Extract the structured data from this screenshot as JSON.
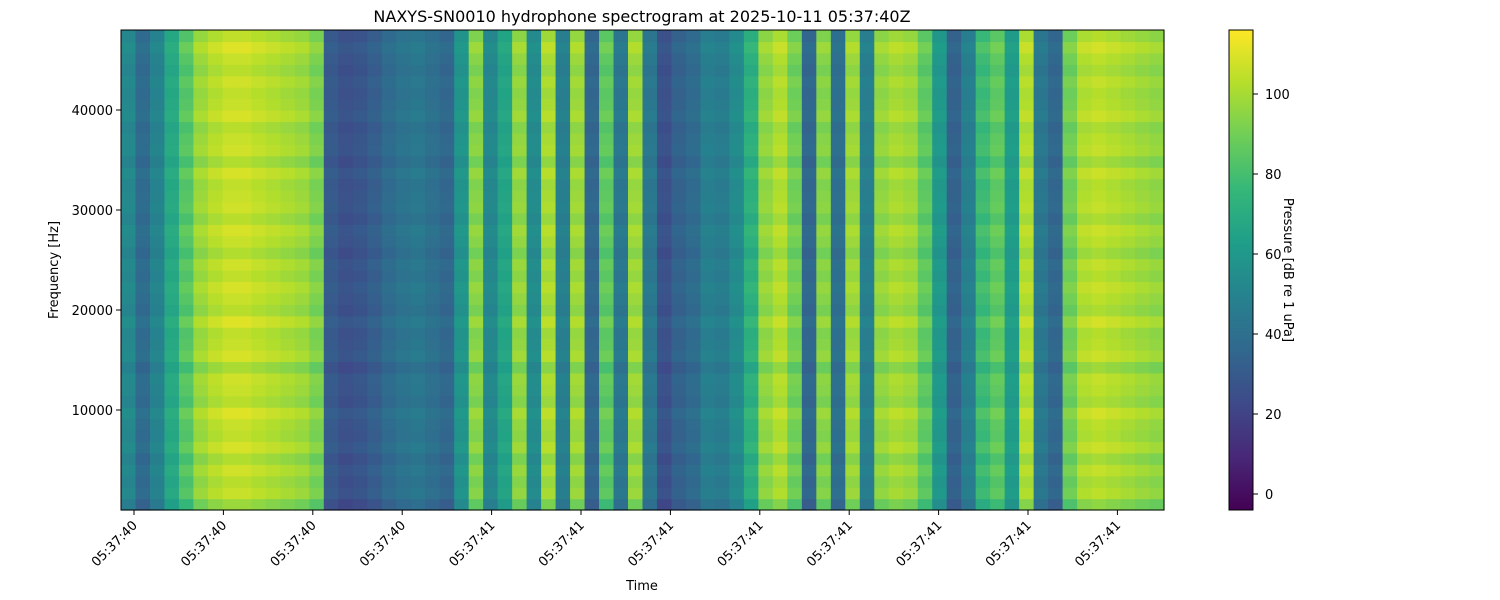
{
  "chart_data": {
    "type": "heatmap",
    "title": "NAXYS-SN0010 hydrophone spectrogram at 2025-10-11 05:37:40Z",
    "xlabel": "Time",
    "ylabel": "Frequency [Hz]",
    "colorbar_label": "Pressure [dB re 1 uPa]",
    "colormap": "viridis",
    "x_tick_labels": [
      "05:37:40",
      "05:37:40",
      "05:37:40",
      "05:37:40",
      "05:37:41",
      "05:37:41",
      "05:37:41",
      "05:37:41",
      "05:37:41",
      "05:37:41",
      "05:37:41",
      "05:37:41"
    ],
    "y_ticks": [
      10000,
      20000,
      30000,
      40000
    ],
    "ylim": [
      0,
      48000
    ],
    "colorbar_ticks": [
      0,
      20,
      40,
      60,
      80,
      100
    ],
    "colorbar_range": [
      -4,
      116
    ],
    "time_bands_db": [
      52,
      38,
      50,
      68,
      84,
      98,
      103,
      106,
      106,
      104,
      102,
      100,
      98,
      92,
      30,
      26,
      28,
      32,
      38,
      42,
      44,
      40,
      36,
      58,
      94,
      52,
      66,
      96,
      54,
      100,
      48,
      98,
      36,
      86,
      44,
      98,
      44,
      26,
      34,
      38,
      48,
      46,
      54,
      72,
      96,
      102,
      90,
      36,
      94,
      40,
      98,
      48,
      96,
      100,
      98,
      86,
      60,
      34,
      48,
      78,
      86,
      62,
      102,
      44,
      36,
      90,
      102,
      104,
      102,
      100,
      98,
      96
    ],
    "frequency_profile_db": [
      -6,
      0,
      -2,
      1,
      -3,
      2,
      -1,
      0,
      3,
      -2,
      0,
      1,
      -4,
      2,
      0,
      -1,
      3,
      -2,
      0,
      2,
      -1,
      1,
      -3,
      0,
      2,
      -2,
      1,
      0,
      -1,
      2,
      -3,
      1,
      0,
      -2,
      2,
      0,
      -1,
      1,
      -2,
      0,
      3,
      -1
    ]
  },
  "colors": {
    "viridis": [
      "#440154",
      "#482878",
      "#3e4a89",
      "#31688e",
      "#26828e",
      "#1f9e89",
      "#35b779",
      "#6ece58",
      "#b5de2b",
      "#fde725"
    ]
  }
}
